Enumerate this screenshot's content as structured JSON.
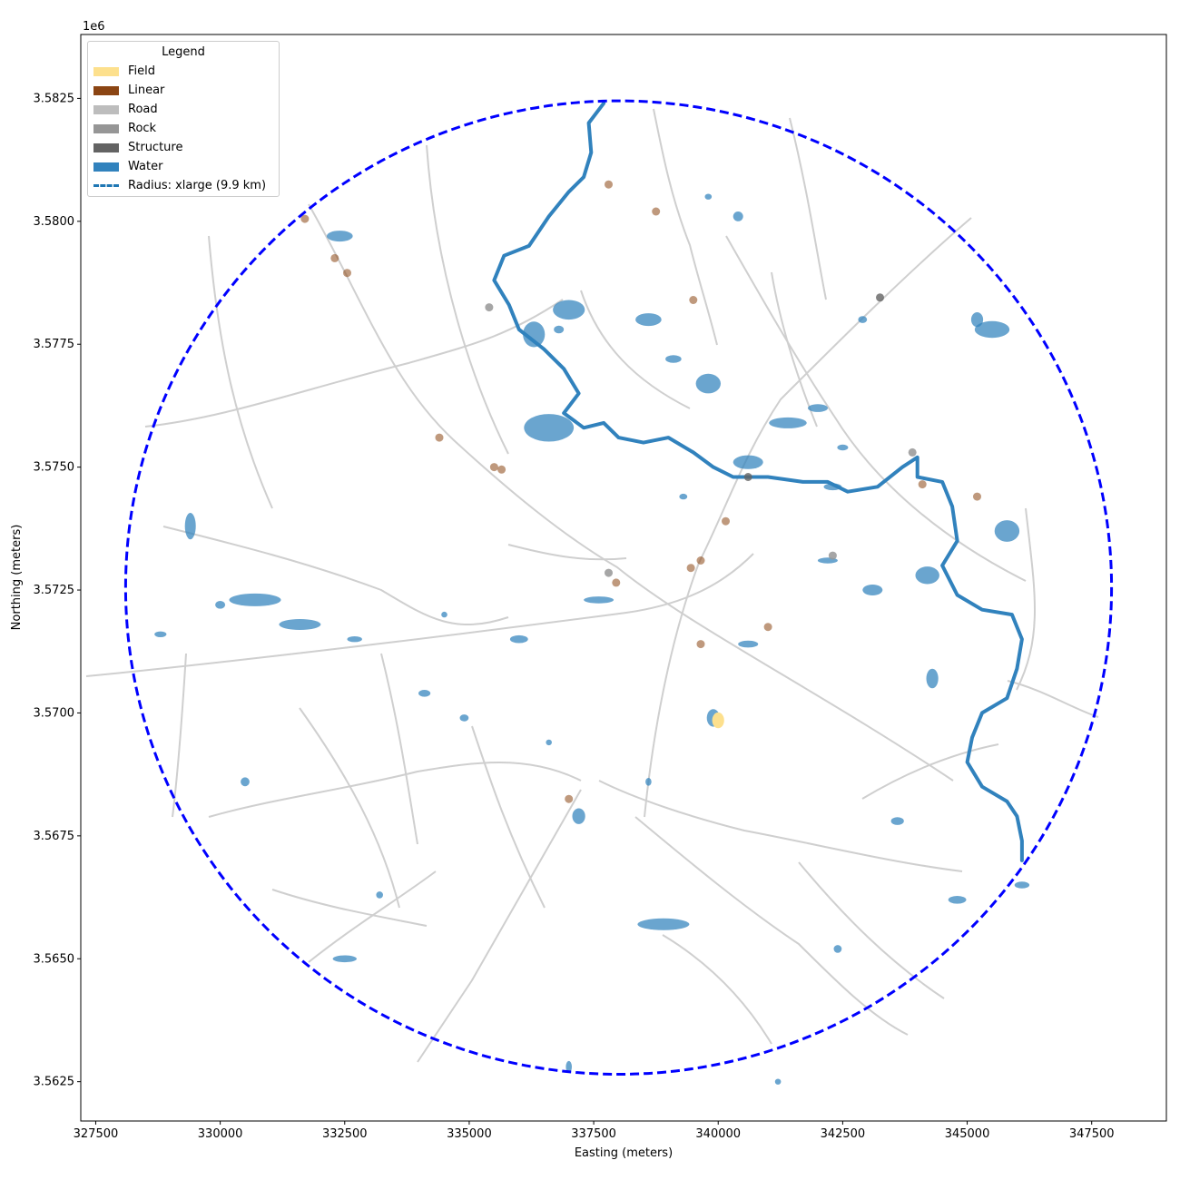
{
  "axes": {
    "offset_label": "1e6",
    "xlabel": "Easting (meters)",
    "ylabel": "Northing (meters)",
    "xlim": [
      327200,
      349000
    ],
    "ylim": [
      3561700,
      3583800
    ],
    "x_ticks": [
      "327500",
      "330000",
      "332500",
      "335000",
      "337500",
      "340000",
      "342500",
      "345000",
      "347500"
    ],
    "x_tick_values": [
      327500,
      330000,
      332500,
      335000,
      337500,
      340000,
      342500,
      345000,
      347500
    ],
    "y_ticks": [
      "3.5625",
      "3.5650",
      "3.5675",
      "3.5700",
      "3.5725",
      "3.5750",
      "3.5775",
      "3.5800",
      "3.5825"
    ],
    "y_tick_values": [
      3562500,
      3565000,
      3567500,
      3570000,
      3572500,
      3575000,
      3577500,
      3580000,
      3582500
    ]
  },
  "legend": {
    "title": "Legend",
    "items": [
      {
        "label": "Field",
        "color": "#fde08d",
        "kind": "patch"
      },
      {
        "label": "Linear",
        "color": "#8b4513",
        "kind": "patch"
      },
      {
        "label": "Road",
        "color": "#bdbdbd",
        "kind": "patch"
      },
      {
        "label": "Rock",
        "color": "#969696",
        "kind": "patch"
      },
      {
        "label": "Structure",
        "color": "#636363",
        "kind": "patch"
      },
      {
        "label": "Water",
        "color": "#3182bd",
        "kind": "patch"
      },
      {
        "label": "Radius: xlarge (9.9 km)",
        "color": "#1f77b4",
        "kind": "dashed-line"
      }
    ]
  },
  "chart_data": {
    "type": "map",
    "radius_circle": {
      "center": [
        338000,
        3572550
      ],
      "radius_m": 9900,
      "color": "#0000ff",
      "style": "dashed"
    },
    "colors": {
      "water": "#3182bd",
      "road": "#bdbdbd",
      "linear": "#8b4513",
      "rock": "#969696",
      "structure": "#636363",
      "field": "#fde08d"
    },
    "river": [
      [
        337700,
        3582400
      ],
      [
        337400,
        3582000
      ],
      [
        337450,
        3581400
      ],
      [
        337300,
        3580900
      ],
      [
        337000,
        3580600
      ],
      [
        336600,
        3580100
      ],
      [
        336200,
        3579500
      ],
      [
        335700,
        3579300
      ],
      [
        335500,
        3578800
      ],
      [
        335800,
        3578300
      ],
      [
        336000,
        3577800
      ],
      [
        336500,
        3577400
      ],
      [
        336900,
        3577000
      ],
      [
        337200,
        3576500
      ],
      [
        336900,
        3576100
      ],
      [
        337300,
        3575800
      ],
      [
        337700,
        3575900
      ],
      [
        338000,
        3575600
      ],
      [
        338500,
        3575500
      ],
      [
        339000,
        3575600
      ],
      [
        339500,
        3575300
      ],
      [
        339900,
        3575000
      ],
      [
        340300,
        3574800
      ],
      [
        341000,
        3574800
      ],
      [
        341700,
        3574700
      ],
      [
        342200,
        3574700
      ],
      [
        342600,
        3574500
      ],
      [
        343200,
        3574600
      ],
      [
        343700,
        3575000
      ],
      [
        344000,
        3575200
      ],
      [
        344000,
        3574800
      ],
      [
        344500,
        3574700
      ],
      [
        344700,
        3574200
      ],
      [
        344800,
        3573500
      ],
      [
        344500,
        3573000
      ],
      [
        344800,
        3572400
      ],
      [
        345300,
        3572100
      ],
      [
        345900,
        3572000
      ],
      [
        346100,
        3571500
      ],
      [
        346000,
        3570900
      ],
      [
        345800,
        3570300
      ],
      [
        345300,
        3570000
      ],
      [
        345100,
        3569500
      ],
      [
        345000,
        3569000
      ],
      [
        345300,
        3568500
      ],
      [
        345800,
        3568200
      ],
      [
        346000,
        3567900
      ],
      [
        346100,
        3567400
      ],
      [
        346100,
        3567000
      ]
    ],
    "water_bodies": [
      [
        336600,
        3575800,
        500,
        280
      ],
      [
        336300,
        3577700,
        220,
        260
      ],
      [
        337000,
        3578200,
        320,
        200
      ],
      [
        338600,
        3578000,
        260,
        130
      ],
      [
        339800,
        3576700,
        250,
        200
      ],
      [
        340600,
        3575100,
        300,
        140
      ],
      [
        341400,
        3575900,
        380,
        110
      ],
      [
        342300,
        3574600,
        180,
        70
      ],
      [
        342000,
        3576200,
        200,
        80
      ],
      [
        345500,
        3577800,
        350,
        170
      ],
      [
        345800,
        3573700,
        250,
        220
      ],
      [
        344200,
        3572800,
        240,
        180
      ],
      [
        339300,
        3574400,
        80,
        60
      ],
      [
        343100,
        3572500,
        200,
        110
      ],
      [
        330700,
        3572300,
        520,
        130
      ],
      [
        331600,
        3571800,
        420,
        110
      ],
      [
        330000,
        3572200,
        100,
        80
      ],
      [
        328800,
        3571600,
        120,
        60
      ],
      [
        332700,
        3571500,
        150,
        60
      ],
      [
        329400,
        3573800,
        110,
        270
      ],
      [
        334500,
        3572000,
        60,
        60
      ],
      [
        336000,
        3571500,
        180,
        80
      ],
      [
        337600,
        3572300,
        300,
        70
      ],
      [
        340600,
        3571400,
        200,
        70
      ],
      [
        342200,
        3573100,
        200,
        60
      ],
      [
        339900,
        3569900,
        130,
        180
      ],
      [
        344300,
        3570700,
        120,
        200
      ],
      [
        337200,
        3567900,
        130,
        160
      ],
      [
        338900,
        3565700,
        520,
        120
      ],
      [
        346100,
        3566500,
        150,
        70
      ],
      [
        344800,
        3566200,
        180,
        80
      ],
      [
        332500,
        3565000,
        240,
        70
      ],
      [
        330500,
        3568600,
        90,
        90
      ],
      [
        334900,
        3569900,
        90,
        70
      ],
      [
        343600,
        3567800,
        130,
        80
      ],
      [
        338600,
        3568600,
        60,
        80
      ],
      [
        337000,
        3562800,
        60,
        120
      ],
      [
        339800,
        3580500,
        70,
        60
      ],
      [
        342500,
        3575400,
        110,
        60
      ],
      [
        332400,
        3579700,
        260,
        110
      ],
      [
        339100,
        3577200,
        160,
        80
      ],
      [
        340400,
        3580100,
        100,
        100
      ],
      [
        345200,
        3578000,
        120,
        150
      ],
      [
        342900,
        3578000,
        90,
        70
      ],
      [
        336800,
        3577800,
        100,
        80
      ],
      [
        334100,
        3570400,
        120,
        70
      ],
      [
        336600,
        3569400,
        60,
        60
      ],
      [
        333200,
        3566300,
        70,
        70
      ],
      [
        341200,
        3562500,
        60,
        60
      ],
      [
        342400,
        3565200,
        80,
        80
      ]
    ],
    "linear_points": [
      [
        331700,
        3580050
      ],
      [
        332300,
        3579250
      ],
      [
        332550,
        3578950
      ],
      [
        334400,
        3575600
      ],
      [
        335500,
        3575000
      ],
      [
        335650,
        3574950
      ],
      [
        337000,
        3568250
      ],
      [
        337950,
        3572650
      ],
      [
        338750,
        3580200
      ],
      [
        339500,
        3578400
      ],
      [
        339450,
        3572950
      ],
      [
        339650,
        3573100
      ],
      [
        339650,
        3571400
      ],
      [
        340150,
        3573900
      ],
      [
        341000,
        3571750
      ],
      [
        345200,
        3574400
      ],
      [
        344100,
        3574650
      ],
      [
        337800,
        3580750
      ]
    ],
    "rock_points": [
      [
        335400,
        3578250
      ],
      [
        337800,
        3572850
      ],
      [
        343900,
        3575300
      ],
      [
        342300,
        3573200
      ]
    ],
    "structure_points": [
      [
        343250,
        3578450
      ],
      [
        340600,
        3574800
      ]
    ],
    "field_areas": [
      [
        340000,
        3569850,
        120,
        160
      ]
    ]
  }
}
